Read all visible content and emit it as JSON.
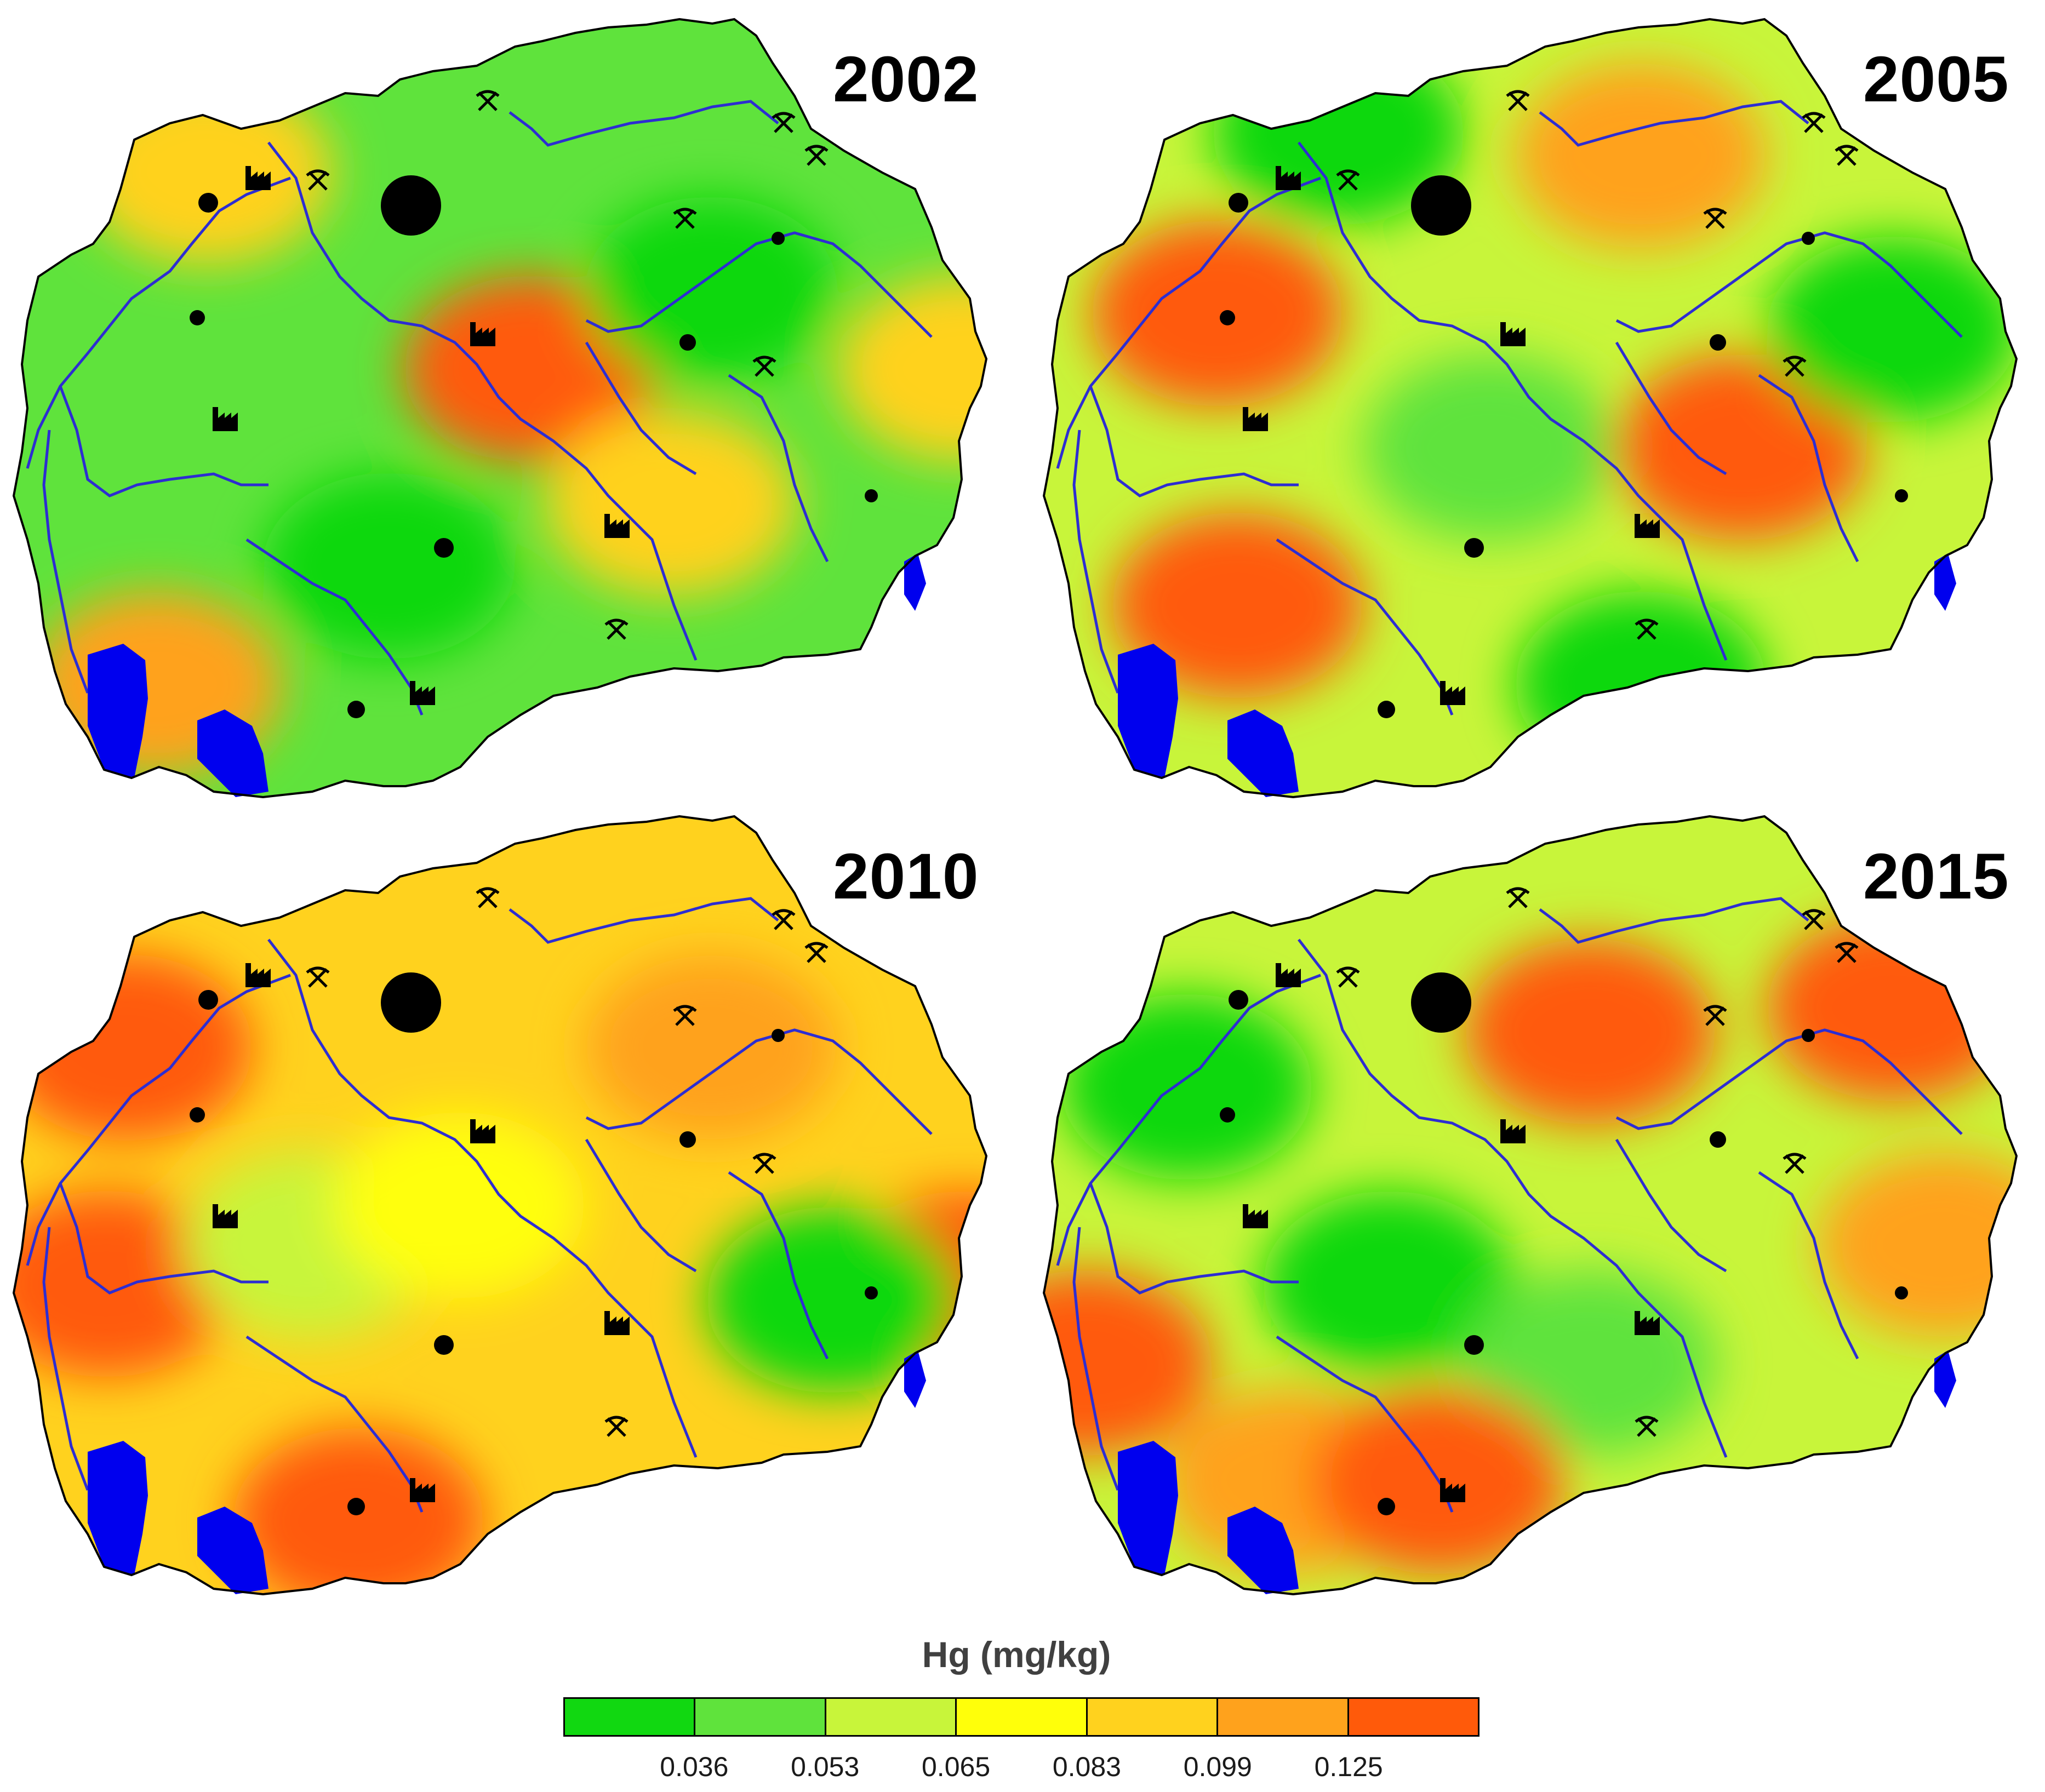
{
  "colors": {
    "c1": "#11d811",
    "c2": "#5fe33c",
    "c3": "#c8f53a",
    "c4": "#ffff0a",
    "c5": "#ffd21e",
    "c6": "#ffa21c",
    "c7": "#ff5a0a",
    "water": "#0000ee",
    "river": "#2d2dd2",
    "border": "#000000"
  },
  "panels": [
    {
      "year": "2002",
      "dominant": "c2",
      "blobs": [
        [
          "c7",
          0.52,
          0.45
        ],
        [
          "c5",
          0.66,
          0.62
        ],
        [
          "c5",
          0.2,
          0.2
        ],
        [
          "c1",
          0.7,
          0.35
        ],
        [
          "c1",
          0.38,
          0.7
        ],
        [
          "c6",
          0.15,
          0.85
        ],
        [
          "c5",
          0.95,
          0.45
        ]
      ]
    },
    {
      "year": "2005",
      "dominant": "c3",
      "blobs": [
        [
          "c7",
          0.18,
          0.38
        ],
        [
          "c7",
          0.2,
          0.75
        ],
        [
          "c7",
          0.7,
          0.55
        ],
        [
          "c6",
          0.6,
          0.18
        ],
        [
          "c1",
          0.85,
          0.4
        ],
        [
          "c1",
          0.3,
          0.15
        ],
        [
          "c1",
          0.6,
          0.85
        ],
        [
          "c2",
          0.45,
          0.55
        ]
      ]
    },
    {
      "year": "2010",
      "dominant": "c5",
      "blobs": [
        [
          "c7",
          0.12,
          0.3
        ],
        [
          "c7",
          0.1,
          0.6
        ],
        [
          "c7",
          0.35,
          0.9
        ],
        [
          "c7",
          0.95,
          0.6
        ],
        [
          "c6",
          0.7,
          0.3
        ],
        [
          "c1",
          0.82,
          0.62
        ],
        [
          "c3",
          0.3,
          0.55
        ],
        [
          "c4",
          0.45,
          0.5
        ]
      ]
    },
    {
      "year": "2015",
      "dominant": "c3",
      "blobs": [
        [
          "c7",
          0.55,
          0.28
        ],
        [
          "c7",
          0.85,
          0.25
        ],
        [
          "c6",
          0.9,
          0.55
        ],
        [
          "c7",
          0.05,
          0.7
        ],
        [
          "c1",
          0.35,
          0.6
        ],
        [
          "c1",
          0.15,
          0.35
        ],
        [
          "c2",
          0.55,
          0.7
        ],
        [
          "c6",
          0.25,
          0.85
        ],
        [
          "c7",
          0.4,
          0.85
        ]
      ]
    }
  ],
  "legend": {
    "title": "Hg (mg/kg)",
    "classes": [
      "c1",
      "c2",
      "c3",
      "c4",
      "c5",
      "c6",
      "c7"
    ],
    "breaks": [
      "0.036",
      "0.053",
      "0.065",
      "0.083",
      "0.099",
      "0.125"
    ]
  }
}
